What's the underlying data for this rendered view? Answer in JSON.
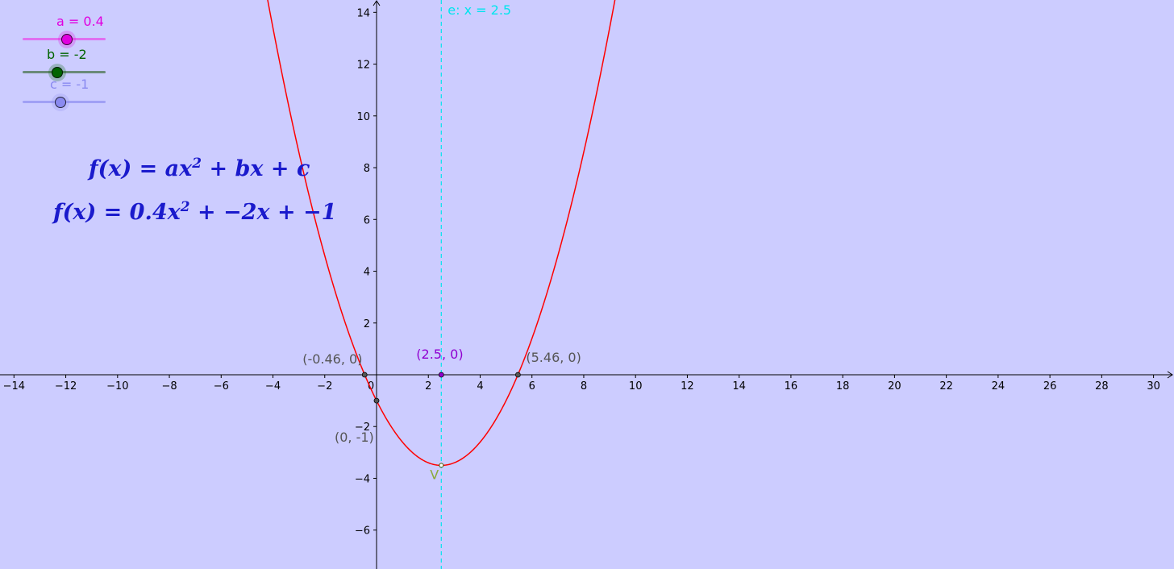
{
  "sliders": [
    {
      "name": "a",
      "label": "a = 0.4",
      "value": 0.4,
      "min": -5,
      "max": 5,
      "color": "#e000e0",
      "track": "#e070f0"
    },
    {
      "name": "b",
      "label": "b = -2",
      "value": -2,
      "min": -5,
      "max": 5,
      "color": "#006400",
      "track": "#6a8a7a"
    },
    {
      "name": "c",
      "label": "c = -1",
      "value": -1,
      "min": -5,
      "max": 5,
      "color": "#8a8af0",
      "track": "#a0a0f5"
    }
  ],
  "formulas": {
    "general": {
      "lhs": "f(x) = ax",
      "exp": "2",
      "rhs": " + bx + c"
    },
    "specific": {
      "lhs": "f(x) = 0.4x",
      "exp": "2",
      "rhs": " + −2x + −1"
    }
  },
  "graph": {
    "x_ticks": [
      "−14",
      "−12",
      "−10",
      "−8",
      "−6",
      "−4",
      "−2",
      "0",
      "2",
      "4",
      "6",
      "8",
      "10",
      "12",
      "14",
      "16",
      "18",
      "20",
      "22",
      "24",
      "26",
      "28",
      "30"
    ],
    "y_ticks": [
      "−6",
      "−4",
      "−2",
      "2",
      "4",
      "6",
      "8",
      "10",
      "12",
      "14"
    ],
    "curve_color": "#ff0000",
    "axis_of_symmetry": {
      "label": "e: x = 2.5",
      "x": 2.5,
      "color": "#00e5ee"
    },
    "points": [
      {
        "label": "(-0.46, 0)",
        "x": -0.46,
        "y": 0,
        "color": "#555555"
      },
      {
        "label": "(5.46, 0)",
        "x": 5.46,
        "y": 0,
        "color": "#555555"
      },
      {
        "label": "(0, -1)",
        "x": 0,
        "y": -1,
        "color": "#555555"
      },
      {
        "label": "(2.5, 0)",
        "x": 2.5,
        "y": 0,
        "color": "#9000d0"
      }
    ],
    "vertex": {
      "label": "V",
      "x": 2.5,
      "y": -3.5,
      "color": "#8aaa3a"
    }
  }
}
